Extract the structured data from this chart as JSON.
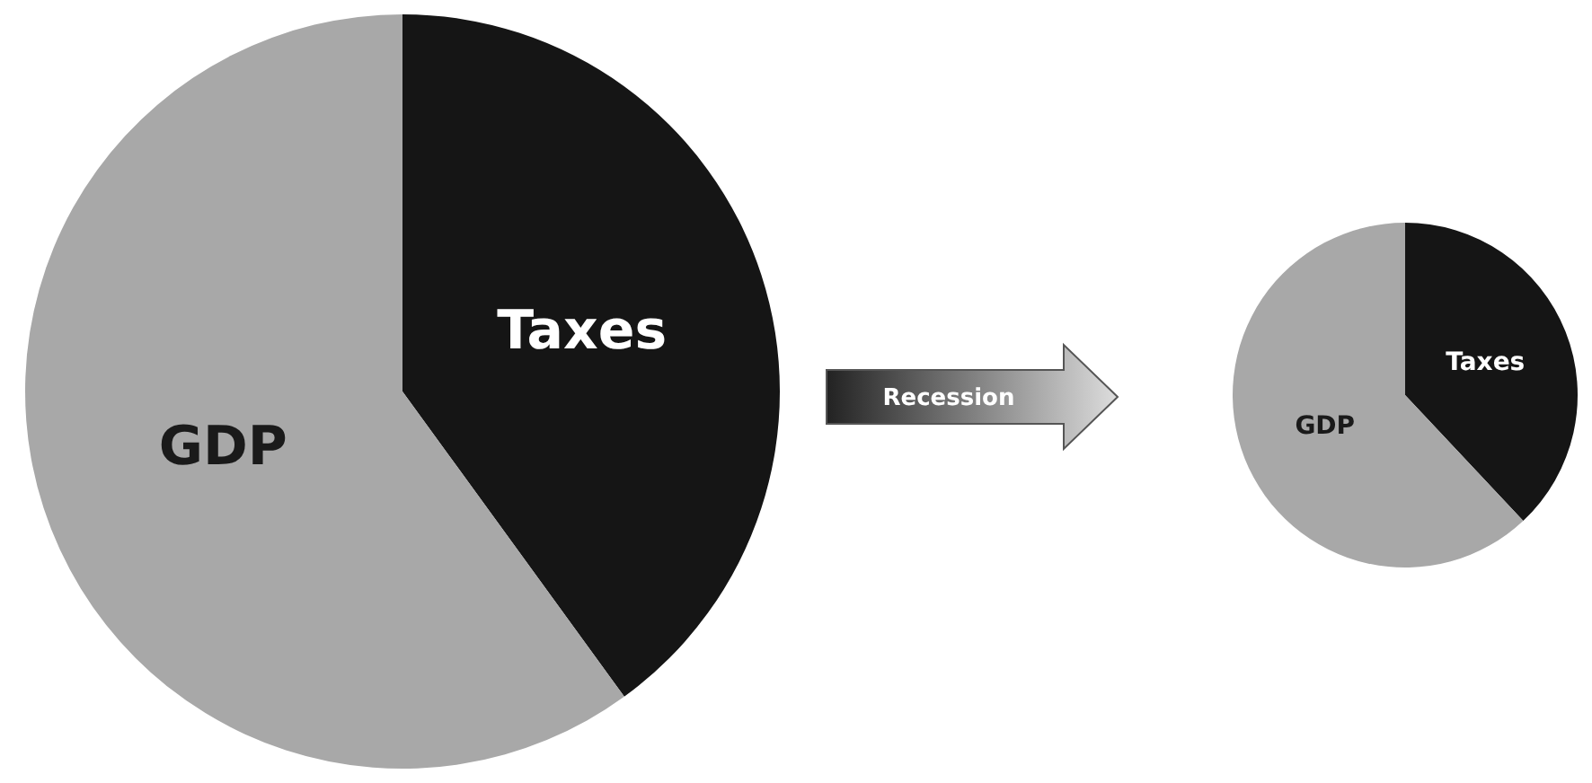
{
  "chart_data": [
    {
      "type": "pie",
      "categories": [
        "Taxes",
        "GDP"
      ],
      "values": [
        40,
        60
      ],
      "colors": [
        "#151515",
        "#a8a8a8"
      ],
      "data_labels": false
    },
    {
      "type": "pie",
      "categories": [
        "Taxes",
        "GDP"
      ],
      "values": [
        38,
        62
      ],
      "colors": [
        "#151515",
        "#a8a8a8"
      ],
      "data_labels": false,
      "annotations": [
        "Recession"
      ]
    }
  ]
}
